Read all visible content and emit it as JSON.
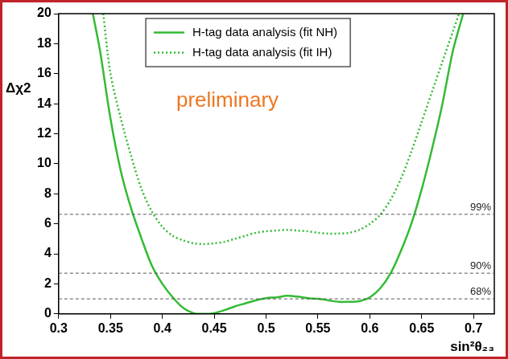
{
  "chart_data": {
    "type": "line",
    "x_label": "sin²θ₂₃",
    "y_label": "Δχ2",
    "annotations": [
      "preliminary"
    ],
    "reference_lines": [
      {
        "y": 6.63,
        "text": "99%"
      },
      {
        "y": 2.71,
        "text": "90%"
      },
      {
        "y": 1.0,
        "text": "68%"
      }
    ],
    "xlim": [
      0.3,
      0.72
    ],
    "xticks": [
      0.3,
      0.35,
      0.4,
      0.45,
      0.5,
      0.55,
      0.6,
      0.65,
      0.7
    ],
    "ylim": [
      0,
      20
    ],
    "yticks": [
      0,
      2,
      4,
      6,
      8,
      10,
      12,
      14,
      16,
      18,
      20
    ],
    "grid": false,
    "legend": "top",
    "series": [
      {
        "name": "H-tag data analysis (fit NH)",
        "color": "#33bb33",
        "line_style": "solid",
        "x": [
          0.333,
          0.34,
          0.35,
          0.36,
          0.37,
          0.38,
          0.39,
          0.4,
          0.41,
          0.42,
          0.43,
          0.44,
          0.45,
          0.46,
          0.47,
          0.48,
          0.49,
          0.5,
          0.51,
          0.52,
          0.53,
          0.54,
          0.55,
          0.56,
          0.57,
          0.58,
          0.59,
          0.6,
          0.61,
          0.62,
          0.63,
          0.64,
          0.65,
          0.66,
          0.67,
          0.68,
          0.69
        ],
        "values": [
          20,
          17.5,
          13,
          9.5,
          7,
          5,
          3.2,
          2.0,
          1.1,
          0.4,
          0.05,
          0,
          0.05,
          0.25,
          0.5,
          0.7,
          0.9,
          1.05,
          1.1,
          1.2,
          1.15,
          1.05,
          1.0,
          0.9,
          0.8,
          0.8,
          0.85,
          1.1,
          1.7,
          2.7,
          4.2,
          6.0,
          8.3,
          11,
          14,
          17.5,
          20
        ]
      },
      {
        "name": "H-tag data analysis (fit IH)",
        "color": "#33bb33",
        "line_style": "dotted",
        "x": [
          0.343,
          0.35,
          0.36,
          0.37,
          0.38,
          0.39,
          0.4,
          0.41,
          0.42,
          0.43,
          0.44,
          0.45,
          0.46,
          0.47,
          0.48,
          0.49,
          0.5,
          0.51,
          0.52,
          0.53,
          0.54,
          0.55,
          0.56,
          0.57,
          0.58,
          0.59,
          0.6,
          0.61,
          0.62,
          0.63,
          0.64,
          0.65,
          0.66,
          0.67,
          0.68,
          0.686
        ],
        "values": [
          20,
          16,
          13,
          10.5,
          8.3,
          6.8,
          5.8,
          5.2,
          4.9,
          4.7,
          4.65,
          4.7,
          4.8,
          5.0,
          5.2,
          5.4,
          5.5,
          5.55,
          5.6,
          5.55,
          5.5,
          5.4,
          5.35,
          5.35,
          5.4,
          5.6,
          6.0,
          6.6,
          7.6,
          9.0,
          10.8,
          12.8,
          14.8,
          16.8,
          18.8,
          20
        ]
      }
    ]
  }
}
